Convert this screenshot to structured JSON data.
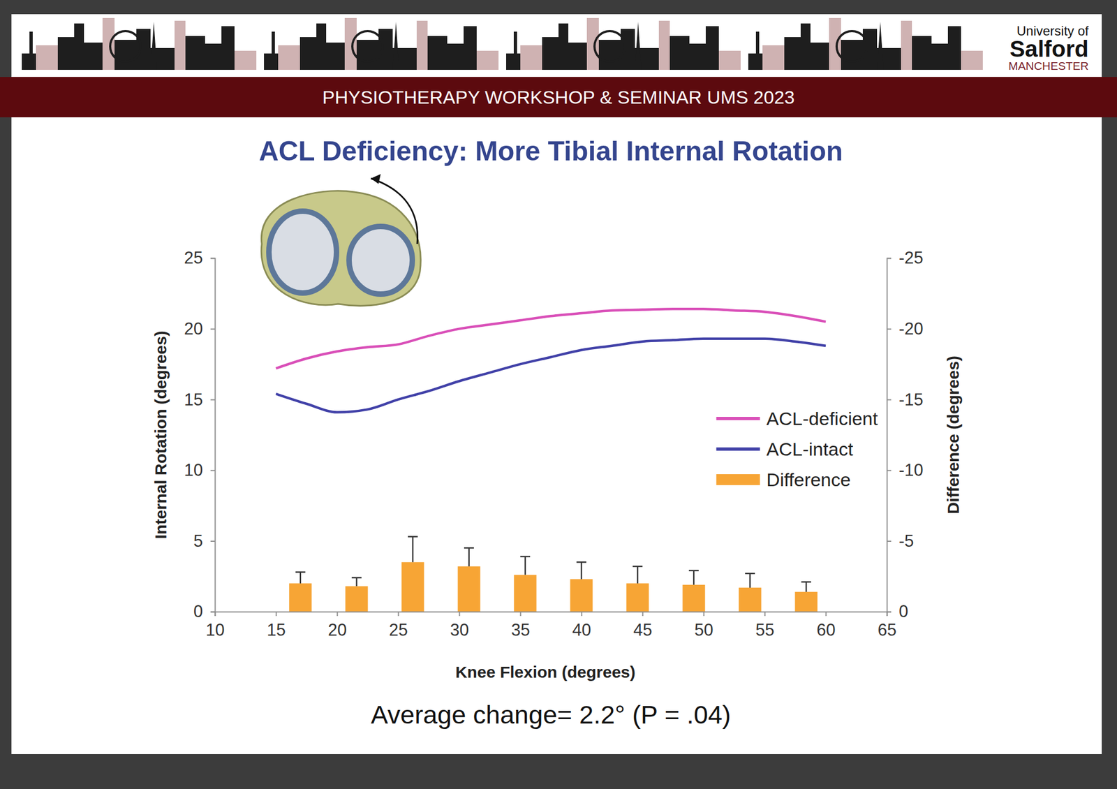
{
  "header": {
    "banner": "PHYSIOTHERAPY WORKSHOP & SEMINAR UMS 2023",
    "logo": [
      "University of",
      "Salford",
      "MANCHESTER"
    ]
  },
  "chart_data": {
    "type": "line",
    "title": "ACL Deficiency: More Tibial Internal Rotation",
    "x_label": "Knee Flexion (degrees)",
    "y_label": "Internal Rotation (degrees)",
    "y2_label": "Difference (degrees)",
    "annotation": "Average change= 2.2° (P = .04)",
    "x": [
      15,
      17.5,
      20,
      22.5,
      25,
      27.5,
      30,
      32.5,
      35,
      37.5,
      40,
      42.5,
      45,
      47.5,
      50,
      52.5,
      55,
      57.5,
      60
    ],
    "series": [
      {
        "name": "ACL-deficient",
        "type": "line",
        "color": "#d94fb8",
        "values": [
          17.2,
          17.9,
          18.4,
          18.7,
          18.9,
          19.5,
          20.0,
          20.3,
          20.6,
          20.9,
          21.1,
          21.3,
          21.35,
          21.4,
          21.4,
          21.3,
          21.2,
          20.9,
          20.5
        ]
      },
      {
        "name": "ACL-intact",
        "type": "line",
        "color": "#4141a8",
        "values": [
          15.4,
          14.7,
          14.1,
          14.3,
          15.0,
          15.6,
          16.3,
          16.9,
          17.5,
          18.0,
          18.5,
          18.8,
          19.1,
          19.2,
          19.3,
          19.3,
          19.3,
          19.1,
          18.8
        ]
      },
      {
        "name": "Difference",
        "type": "bar",
        "axis": "y2",
        "color": "#f7a535",
        "x": [
          17,
          21.6,
          26.2,
          30.8,
          35.4,
          40,
          44.6,
          49.2,
          53.8,
          58.4
        ],
        "values": [
          -2.0,
          -1.8,
          -3.5,
          -3.2,
          -2.6,
          -2.3,
          -2.0,
          -1.9,
          -1.7,
          -1.4
        ],
        "errors": [
          0.8,
          0.6,
          1.8,
          1.3,
          1.3,
          1.2,
          1.2,
          1.0,
          1.0,
          0.7
        ]
      }
    ],
    "xlim": [
      10,
      65
    ],
    "xticks": [
      10,
      15,
      20,
      25,
      30,
      35,
      40,
      45,
      50,
      55,
      60,
      65
    ],
    "ylim": [
      0,
      25
    ],
    "yticks": [
      0,
      5,
      10,
      15,
      20,
      25
    ],
    "y2lim": [
      0,
      -25
    ],
    "y2ticks": [
      0,
      -5,
      -10,
      -15,
      -20,
      -25
    ],
    "legend": "right",
    "grid": false
  }
}
